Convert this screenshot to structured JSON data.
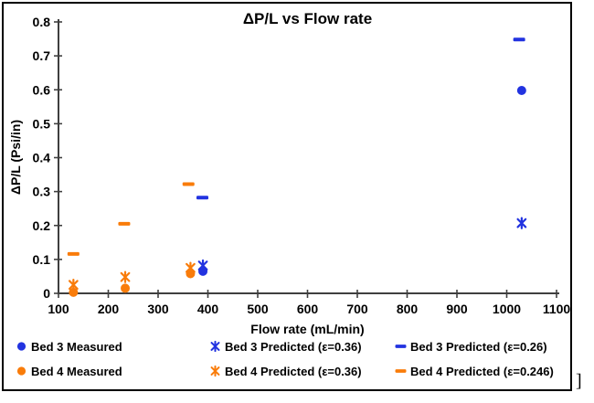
{
  "frame": {
    "stray_bracket": "]"
  },
  "chart_data": {
    "type": "scatter",
    "title": "ΔP/L vs Flow rate",
    "xlabel": "Flow rate (mL/min)",
    "ylabel": "ΔP/L (Psi/in)",
    "xlim": [
      100,
      1100
    ],
    "ylim": [
      0,
      0.8
    ],
    "grid": false,
    "legend_position": "bottom",
    "colors": {
      "bed3_blue": "#2233e0",
      "bed4_orange": "#f97c0a",
      "axis": "#3f3f3f",
      "text": "#000000"
    },
    "xticks": [
      {
        "v": 100,
        "label": "100"
      },
      {
        "v": 200,
        "label": "200"
      },
      {
        "v": 300,
        "label": "300"
      },
      {
        "v": 400,
        "label": "400"
      },
      {
        "v": 500,
        "label": "500"
      },
      {
        "v": 600,
        "label": "600"
      },
      {
        "v": 700,
        "label": "700"
      },
      {
        "v": 800,
        "label": "800"
      },
      {
        "v": 900,
        "label": "900"
      },
      {
        "v": 1000,
        "label": "1000"
      },
      {
        "v": 1100,
        "label": "1100"
      }
    ],
    "yticks": [
      {
        "v": 0,
        "label": "0"
      },
      {
        "v": 0.1,
        "label": "0.1"
      },
      {
        "v": 0.2,
        "label": "0.2"
      },
      {
        "v": 0.3,
        "label": "0.3"
      },
      {
        "v": 0.4,
        "label": "0.4"
      },
      {
        "v": 0.5,
        "label": "0.5"
      },
      {
        "v": 0.6,
        "label": "0.6"
      },
      {
        "v": 0.7,
        "label": "0.7"
      },
      {
        "v": 0.8,
        "label": "0.8"
      }
    ],
    "series": [
      {
        "name": "Bed 3 Measured",
        "marker": "circle",
        "color": "#2233e0",
        "points": [
          [
            390,
            0.065
          ],
          [
            1030,
            0.598
          ]
        ]
      },
      {
        "name": "Bed 3 Predicted (ε=0.36)",
        "marker": "asterisk",
        "color": "#2233e0",
        "points": [
          [
            390,
            0.082
          ],
          [
            1030,
            0.207
          ]
        ]
      },
      {
        "name": "Bed 3 Predicted (ε=0.26)",
        "marker": "dash",
        "color": "#2233e0",
        "points": [
          [
            389,
            0.282
          ],
          [
            1025,
            0.748
          ]
        ]
      },
      {
        "name": "Bed 4 Measured",
        "marker": "circle",
        "color": "#f97c0a",
        "points": [
          [
            130,
            0.003
          ],
          [
            234,
            0.015
          ],
          [
            365,
            0.058
          ]
        ]
      },
      {
        "name": "Bed 4 Predicted (ε=0.36)",
        "marker": "asterisk",
        "color": "#f97c0a",
        "points": [
          [
            130,
            0.025
          ],
          [
            234,
            0.048
          ],
          [
            365,
            0.075
          ]
        ]
      },
      {
        "name": "Bed 4 Predicted (ε=0.246)",
        "marker": "dash",
        "color": "#f97c0a",
        "points": [
          [
            130,
            0.116
          ],
          [
            232,
            0.205
          ],
          [
            361,
            0.322
          ]
        ]
      }
    ]
  }
}
